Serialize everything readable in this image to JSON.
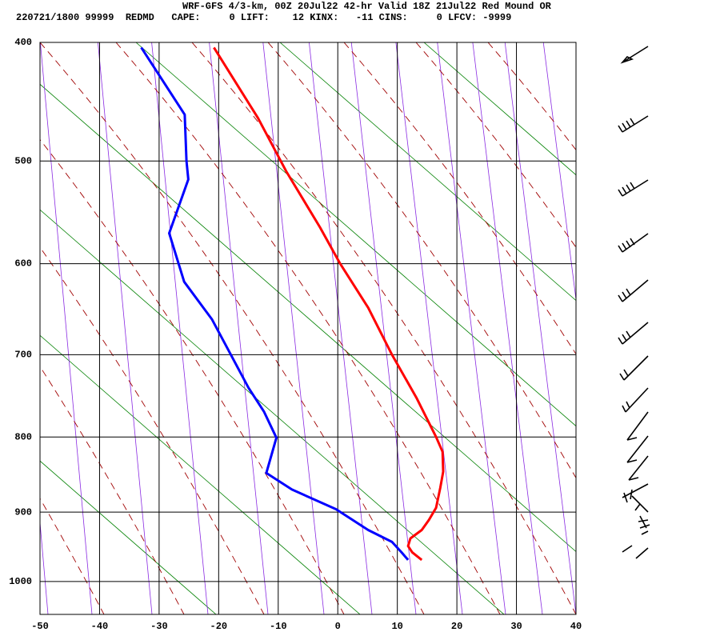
{
  "chart_data": {
    "type": "sounding",
    "title": "WRF-GFS 4/3-km, 00Z 20Jul22 42-hr Valid 18Z 21Jul22 Red Mound OR",
    "subtitle": "220721/1800 99999  REDMD   CAPE:     0 LIFT:    12 KINX:   -11 CINS:     0 LFCV: -9999",
    "xlim": [
      -50,
      40
    ],
    "xticks": [
      -50,
      -40,
      -30,
      -20,
      -10,
      0,
      10,
      20,
      30,
      40
    ],
    "ylim": [
      400,
      1050
    ],
    "yticks": [
      400,
      500,
      600,
      700,
      800,
      900,
      1000
    ],
    "grid": true,
    "series": [
      {
        "color": "#ff0000",
        "x": [
          -20.8,
          -13.4,
          -8.6,
          -3.0,
          0.4,
          5.1,
          9.1,
          13.2,
          16.5,
          17.6,
          17.7,
          17.2,
          16.5,
          15.3,
          14.1,
          12.2,
          11.8,
          12.5,
          14.1
        ],
        "y": [
          404,
          462,
          510,
          563,
          600,
          647,
          700,
          751,
          800,
          819,
          845,
          867,
          894,
          911,
          925,
          937,
          948,
          957,
          968
        ]
      },
      {
        "color": "#0000ff",
        "x": [
          -33.0,
          -25.7,
          -25.4,
          -25.1,
          -28.3,
          -25.8,
          -21.1,
          -15.0,
          -12.4,
          -10.3,
          -12.0,
          -7.7,
          -0.3,
          5.1,
          9.1,
          10.7,
          11.8
        ],
        "y": [
          404,
          459,
          500,
          517,
          569,
          619,
          660,
          739,
          768,
          801,
          847,
          869,
          896,
          925,
          942,
          957,
          968
        ]
      }
    ]
  }
}
